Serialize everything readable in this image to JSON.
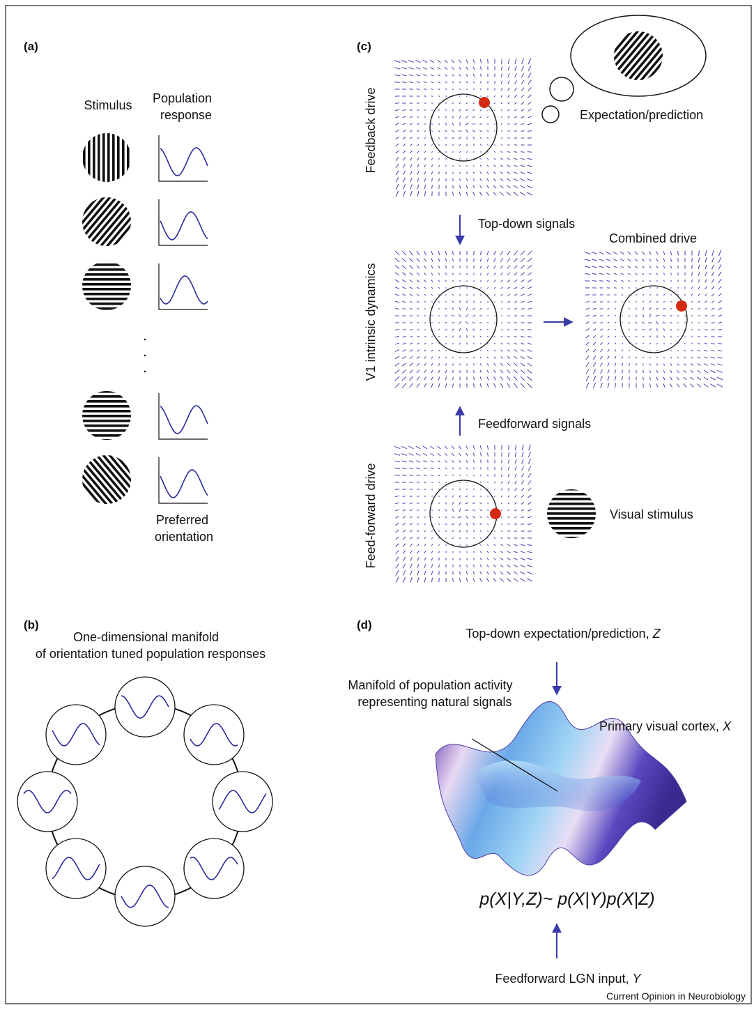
{
  "panel_a": {
    "label": "(a)",
    "stimulus_header": "Stimulus",
    "response_header": [
      "Population",
      "response"
    ],
    "footer": [
      "Preferred",
      "orientation"
    ]
  },
  "panel_b": {
    "label": "(b)",
    "title": [
      "One-dimensional manifold",
      "of orientation tuned population responses"
    ]
  },
  "panel_c": {
    "label": "(c)",
    "feedback_drive": "Feedback drive",
    "expectation": "Expectation/prediction",
    "top_down": "Top-down signals",
    "combined": "Combined drive",
    "intrinsic": "V1 intrinsic dynamics",
    "feedforward_signals": "Feedforward signals",
    "feedforward_drive": "Feed-forward drive",
    "visual_stimulus": "Visual stimulus"
  },
  "panel_d": {
    "label": "(d)",
    "top_down": {
      "text": "Top-down expectation/prediction,",
      "variable": "Z"
    },
    "manifold": [
      "Manifold of population activity",
      "representing natural signals"
    ],
    "cortex": {
      "text": "Primary visual cortex,",
      "variable": "X"
    },
    "formula": "p(X|Y,Z)~ p(X|Y)p(X|Z)",
    "lgn": {
      "text": "Feedforward LGN input,",
      "variable": "Y"
    }
  },
  "source": "Current Opinion in Neurobiology"
}
